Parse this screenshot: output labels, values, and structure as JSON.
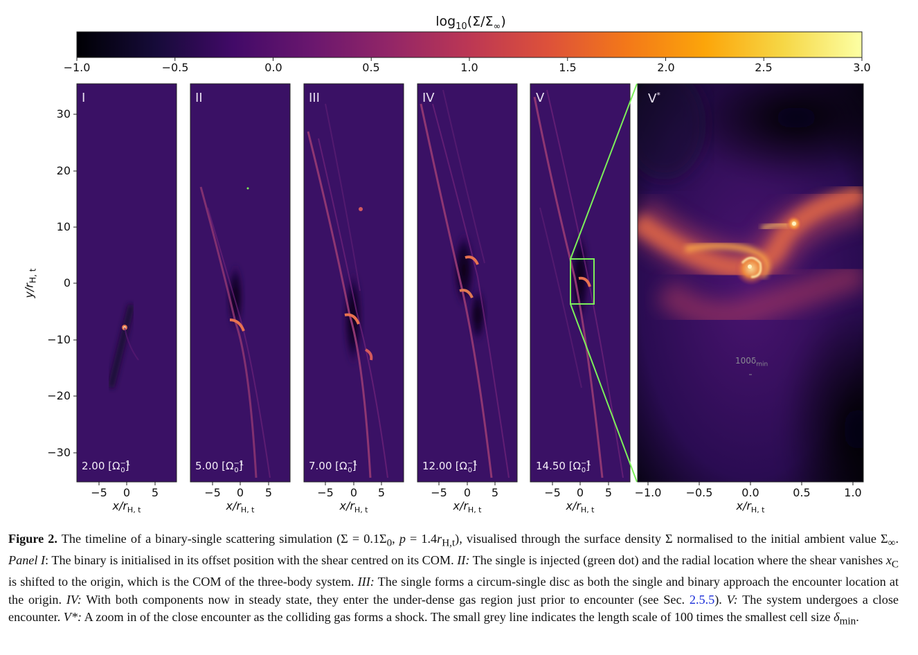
{
  "colorbar": {
    "label": "log10(Σ/Σ∞)",
    "label_base": "log",
    "label_sub": "10",
    "label_rest": "(Σ/Σ",
    "label_inf": "∞",
    "label_close": ")",
    "ticks": [
      "−1.0",
      "−0.5",
      "0.0",
      "0.5",
      "1.0",
      "1.5",
      "2.0",
      "2.5",
      "3.0"
    ],
    "range": [
      -1.0,
      3.0
    ],
    "colormap": "inferno"
  },
  "axes": {
    "ylabel": "y/rH,t",
    "ylabel_main": "y/r",
    "ylabel_sub": "H, t",
    "yticks": [
      "30",
      "20",
      "10",
      "0",
      "−10",
      "−20",
      "−30"
    ],
    "xticks": [
      "−5",
      "0",
      "5"
    ],
    "xlabel_main": "x/r",
    "xlabel_sub": "H, t",
    "zoom_xticks": [
      "−1.0",
      "−0.5",
      "0.0",
      "0.5",
      "1.0"
    ]
  },
  "panels": [
    {
      "id": "I",
      "time": "2.00 [Ω",
      "time_sup": "−1",
      "time_sub": "0",
      "time_close": "]"
    },
    {
      "id": "II",
      "time": "5.00 [Ω",
      "time_sup": "−1",
      "time_sub": "0",
      "time_close": "]"
    },
    {
      "id": "III",
      "time": "7.00 [Ω",
      "time_sup": "−1",
      "time_sub": "0",
      "time_close": "]"
    },
    {
      "id": "IV",
      "time": "12.00 [Ω",
      "time_sup": "−1",
      "time_sub": "0",
      "time_close": "]"
    },
    {
      "id": "V",
      "time": "14.50 [Ω",
      "time_sup": "−1",
      "time_sub": "0",
      "time_close": "]"
    }
  ],
  "zoom_panel": {
    "id": "V",
    "id_sup": "*",
    "scale_label": "100δ",
    "scale_sub": "min"
  },
  "colors": {
    "background_field": "#3a1165",
    "highlight_green": "#7cf05a",
    "dense_orange": "#f08a3c"
  },
  "caption": {
    "figure_label": "Figure 2.",
    "text_1": " The timeline of a binary-single scattering simulation (Σ = 0.1Σ",
    "sub_0": "0",
    "text_2": ", ",
    "p_var": "p",
    "text_3": " = 1.4",
    "r_var": "r",
    "r_sub": "H,t",
    "text_4": "), visualised through the surface density Σ normalised to the initial ambient value Σ",
    "inf_sub": "∞",
    "text_5": ". ",
    "panel1": "Panel I",
    "text_6": ": The binary is initialised in its offset position with the shear centred on its COM. ",
    "panel2": "II:",
    "text_7": " The single is injected (green dot) and the radial location where the shear vanishes ",
    "xc": "x",
    "xc_sub": "C",
    "text_8": " is shifted to the origin, which is the COM of the three-body system. ",
    "panel3": "III:",
    "text_9": " The single forms a circum-single disc as both the single and binary approach the encounter location at the origin. ",
    "panel4": "IV:",
    "text_10": " With both components now in steady state, they enter the under-dense gas region just prior to encounter (see Sec. ",
    "sec_ref": "2.5.5",
    "text_11": "). ",
    "panel5": "V:",
    "text_12": " The system undergoes a close encounter. ",
    "panel6": "V*:",
    "text_13": " A zoom in of the close encounter as the colliding gas forms a shock. The small grey line indicates the length scale of 100 times the smallest cell size ",
    "delta": "δ",
    "delta_sub": "min",
    "text_14": "."
  }
}
